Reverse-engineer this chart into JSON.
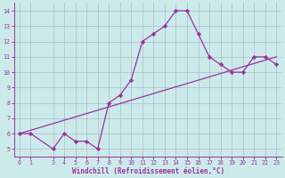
{
  "x": [
    0,
    1,
    3,
    4,
    5,
    6,
    7,
    8,
    9,
    10,
    11,
    12,
    13,
    14,
    15,
    16,
    17,
    18,
    19,
    20,
    21,
    22,
    23
  ],
  "y": [
    6.0,
    6.0,
    5.0,
    6.0,
    5.5,
    5.5,
    5.0,
    8.0,
    8.5,
    9.5,
    12.0,
    12.5,
    13.0,
    14.0,
    14.0,
    12.5,
    11.0,
    10.5,
    10.0,
    10.0,
    11.0,
    11.0,
    10.5
  ],
  "trend_x": [
    0,
    23
  ],
  "trend_y": [
    6.0,
    11.0
  ],
  "color": "#993399",
  "bg_color": "#cceaea",
  "xlabel": "Windchill (Refroidissement éolien,°C)",
  "ylim": [
    4.5,
    14.5
  ],
  "xlim": [
    -0.5,
    23.5
  ],
  "yticks": [
    5,
    6,
    7,
    8,
    9,
    10,
    11,
    12,
    13,
    14
  ],
  "xticks": [
    0,
    1,
    3,
    4,
    5,
    6,
    7,
    8,
    9,
    10,
    11,
    12,
    13,
    14,
    15,
    16,
    17,
    18,
    19,
    20,
    21,
    22,
    23
  ],
  "grid_color": "#aabbcc",
  "marker": "D",
  "markersize": 2.2,
  "linewidth": 0.9,
  "xlabel_fontsize": 5.5,
  "tick_fontsize": 4.8
}
